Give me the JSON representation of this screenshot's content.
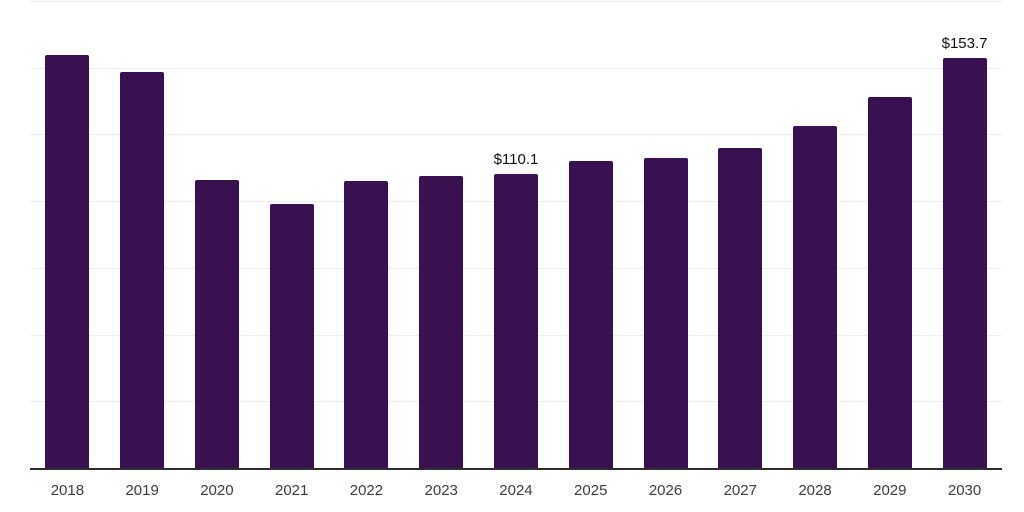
{
  "chart": {
    "bar_color": "#3a1150",
    "axis_color": "#2e2e2e",
    "gridline_color": "#eeeeee",
    "x_label_color": "#3d3d3d",
    "value_label_color": "#0f0f0f",
    "background_color": "#ffffff"
  },
  "chart_data": {
    "type": "bar",
    "title": "",
    "xlabel": "",
    "ylabel": "",
    "categories": [
      "2018",
      "2019",
      "2020",
      "2021",
      "2022",
      "2023",
      "2024",
      "2025",
      "2026",
      "2027",
      "2028",
      "2029",
      "2030"
    ],
    "values": [
      154.8,
      148.5,
      107.9,
      98.9,
      107.7,
      109.3,
      110.1,
      114.9,
      116.1,
      120.1,
      128.0,
      139.2,
      153.7
    ],
    "data_labels": [
      null,
      null,
      null,
      null,
      null,
      null,
      "$110.1",
      null,
      null,
      null,
      null,
      null,
      "$153.7"
    ],
    "ylim": [
      0,
      175
    ],
    "grid_step": 25,
    "grid": "horizontal",
    "legend": "none",
    "y_axis_labels_visible": false
  }
}
